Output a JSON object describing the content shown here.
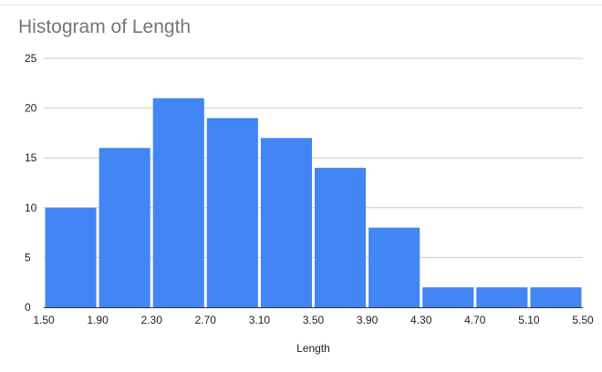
{
  "chart_data": {
    "type": "bar",
    "title": "Histogram of Length",
    "xlabel": "Length",
    "ylabel": "",
    "bin_edges": [
      1.5,
      1.9,
      2.3,
      2.7,
      3.1,
      3.5,
      3.9,
      4.3,
      4.7,
      5.1,
      5.5
    ],
    "x_tick_labels": [
      "1.50",
      "1.90",
      "2.30",
      "2.70",
      "3.10",
      "3.50",
      "3.90",
      "4.30",
      "4.70",
      "5.10",
      "5.50"
    ],
    "values": [
      10,
      16,
      21,
      19,
      17,
      14,
      8,
      2,
      2,
      2
    ],
    "ylim": [
      0,
      25
    ],
    "y_ticks": [
      0,
      5,
      10,
      15,
      20,
      25
    ],
    "grid": true,
    "legend": "none",
    "bar_color": "#4285f4",
    "grid_color": "#cccccc"
  }
}
